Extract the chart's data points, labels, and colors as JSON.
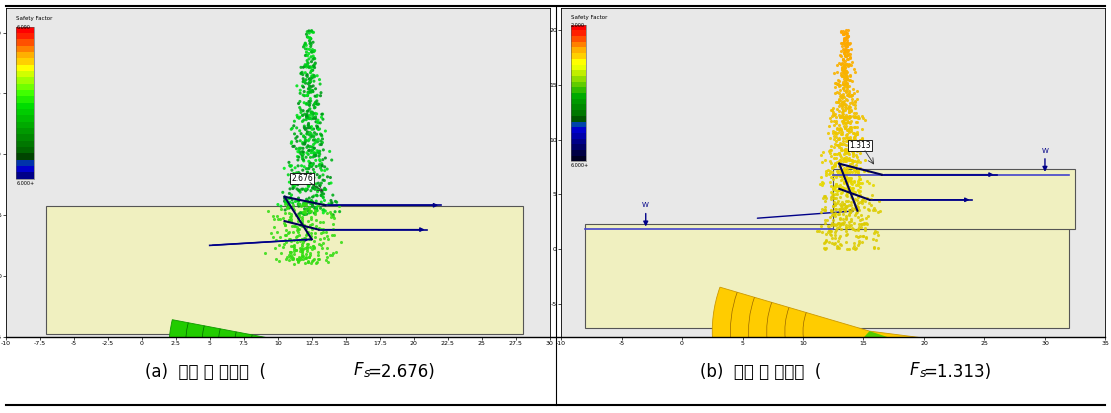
{
  "fig_width": 11.11,
  "fig_height": 4.13,
  "left_caption": "(a)  건기 시 안전율  (",
  "right_caption": "(b)  우기 시 안전율  (",
  "left_fs_value": "=2.676)",
  "right_fs_value": "=1.313)",
  "left_safety_factor": "2.676",
  "right_safety_factor": "1.313"
}
